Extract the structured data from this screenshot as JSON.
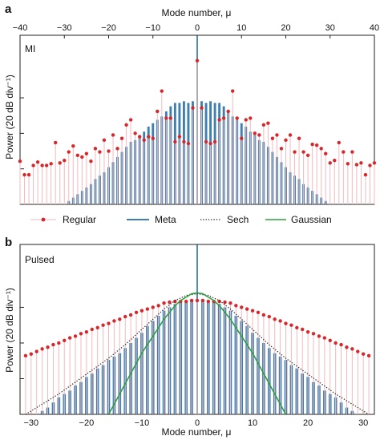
{
  "colors": {
    "regular": "#d9262b",
    "regular_stem": "#f4b9bd",
    "meta": "#3f7fb0",
    "sech": "#222222",
    "gaussian": "#2f9e3f"
  },
  "chart_data": [
    {
      "panel": "a",
      "type": "bar",
      "label": "MI",
      "xlabel": "Mode number, μ",
      "xlabel_position": "top",
      "ylabel": "Power (20 dB div⁻¹)",
      "xlim": [
        -40,
        40
      ],
      "xticks": [
        -40,
        -30,
        -20,
        -10,
        0,
        10,
        20,
        30,
        40
      ],
      "ylim": [
        0,
        1
      ],
      "yticks": [
        0.21,
        0.42,
        0.63
      ],
      "series": [
        {
          "name": "Regular",
          "style": "stem-dot",
          "x": [
            -40,
            -39,
            -38,
            -37,
            -36,
            -35,
            -34,
            -33,
            -32,
            -31,
            -30,
            -29,
            -28,
            -27,
            -26,
            -25,
            -24,
            -23,
            -22,
            -21,
            -20,
            -19,
            -18,
            -17,
            -16,
            -15,
            -14,
            -13,
            -12,
            -11,
            -10,
            -9,
            -8,
            -7,
            -6,
            -5,
            -4,
            -3,
            -2,
            -1,
            0,
            1,
            2,
            3,
            4,
            5,
            6,
            7,
            8,
            9,
            10,
            11,
            12,
            13,
            14,
            15,
            16,
            17,
            18,
            19,
            20,
            21,
            22,
            23,
            24,
            25,
            26,
            27,
            28,
            29,
            30,
            31,
            32,
            33,
            34,
            35,
            36,
            37,
            38,
            39,
            40
          ],
          "y": [
            0.255,
            0.175,
            0.175,
            0.23,
            0.25,
            0.23,
            0.23,
            0.24,
            0.365,
            0.245,
            0.26,
            0.31,
            0.345,
            0.29,
            0.28,
            0.3,
            0.255,
            0.33,
            0.31,
            0.38,
            0.315,
            0.41,
            0.33,
            0.39,
            0.47,
            0.5,
            0.42,
            0.4,
            0.38,
            0.4,
            0.39,
            0.55,
            0.67,
            0.51,
            0.51,
            0.37,
            0.4,
            0.37,
            0.36,
            0.57,
            0.85,
            0.57,
            0.37,
            0.36,
            0.37,
            0.5,
            0.51,
            0.55,
            0.67,
            0.51,
            0.39,
            0.5,
            0.51,
            0.42,
            0.41,
            0.47,
            0.48,
            0.39,
            0.41,
            0.33,
            0.38,
            0.41,
            0.31,
            0.39,
            0.31,
            0.29,
            0.355,
            0.35,
            0.33,
            0.3,
            0.245,
            0.26,
            0.365,
            0.31,
            0.24,
            0.31,
            0.235,
            0.245,
            0.175,
            0.23,
            0.245
          ]
        },
        {
          "name": "Meta",
          "style": "bar",
          "x": [
            -40,
            -39,
            -38,
            -37,
            -36,
            -35,
            -34,
            -33,
            -32,
            -31,
            -30,
            -29,
            -28,
            -27,
            -26,
            -25,
            -24,
            -23,
            -22,
            -21,
            -20,
            -19,
            -18,
            -17,
            -16,
            -15,
            -14,
            -13,
            -12,
            -11,
            -10,
            -9,
            -8,
            -7,
            -6,
            -5,
            -4,
            -3,
            -2,
            -1,
            0,
            1,
            2,
            3,
            4,
            5,
            6,
            7,
            8,
            9,
            10,
            11,
            12,
            13,
            14,
            15,
            16,
            17,
            18,
            19,
            20,
            21,
            22,
            23,
            24,
            25,
            26,
            27,
            28,
            29,
            30,
            31,
            32,
            33,
            34,
            35,
            36,
            37,
            38,
            39,
            40
          ],
          "y": [
            0,
            0,
            0,
            0,
            0,
            0,
            0,
            0,
            0,
            0,
            0,
            0.02,
            0.04,
            0.06,
            0.08,
            0.1,
            0.12,
            0.15,
            0.17,
            0.19,
            0.22,
            0.25,
            0.28,
            0.31,
            0.34,
            0.37,
            0.38,
            0.41,
            0.43,
            0.46,
            0.48,
            0.5,
            0.52,
            0.55,
            0.58,
            0.6,
            0.6,
            0.61,
            0.6,
            0.61,
            1.0,
            0.61,
            0.6,
            0.61,
            0.6,
            0.6,
            0.58,
            0.55,
            0.52,
            0.5,
            0.48,
            0.46,
            0.43,
            0.41,
            0.38,
            0.37,
            0.34,
            0.31,
            0.28,
            0.25,
            0.22,
            0.19,
            0.17,
            0.15,
            0.12,
            0.1,
            0.08,
            0.06,
            0.04,
            0.02,
            0,
            0,
            0,
            0,
            0,
            0,
            0,
            0,
            0,
            0,
            0
          ]
        }
      ]
    },
    {
      "panel": "b",
      "type": "bar",
      "label": "Pulsed",
      "xlabel": "Mode number, μ",
      "ylabel": "Power (20 dB div⁻¹)",
      "xlim": [
        -32,
        32
      ],
      "xticks": [
        -30,
        -20,
        -10,
        0,
        10,
        20,
        30
      ],
      "ylim": [
        0,
        1
      ],
      "yticks": [
        0.21,
        0.42,
        0.63
      ],
      "series": [
        {
          "name": "Regular",
          "style": "stem-dot",
          "x": [
            -31,
            -30,
            -29,
            -28,
            -27,
            -26,
            -25,
            -24,
            -23,
            -22,
            -21,
            -20,
            -19,
            -18,
            -17,
            -16,
            -15,
            -14,
            -13,
            -12,
            -11,
            -10,
            -9,
            -8,
            -7,
            -6,
            -5,
            -4,
            -3,
            -2,
            -1,
            0,
            1,
            2,
            3,
            4,
            5,
            6,
            7,
            8,
            9,
            10,
            11,
            12,
            13,
            14,
            15,
            16,
            17,
            18,
            19,
            20,
            21,
            22,
            23,
            24,
            25,
            26,
            27,
            28,
            29,
            30,
            31
          ],
          "y": [
            0.345,
            0.355,
            0.37,
            0.385,
            0.395,
            0.41,
            0.42,
            0.435,
            0.45,
            0.46,
            0.475,
            0.485,
            0.5,
            0.51,
            0.525,
            0.535,
            0.55,
            0.56,
            0.575,
            0.585,
            0.6,
            0.61,
            0.62,
            0.63,
            0.64,
            0.655,
            0.66,
            0.665,
            0.665,
            0.665,
            0.67,
            0.67,
            0.67,
            0.665,
            0.665,
            0.665,
            0.66,
            0.655,
            0.64,
            0.63,
            0.62,
            0.61,
            0.6,
            0.585,
            0.575,
            0.56,
            0.55,
            0.535,
            0.525,
            0.51,
            0.5,
            0.485,
            0.475,
            0.46,
            0.45,
            0.435,
            0.42,
            0.41,
            0.395,
            0.385,
            0.37,
            0.355,
            0.345
          ]
        },
        {
          "name": "Meta",
          "style": "bar",
          "x": [
            -31,
            -30,
            -29,
            -28,
            -27,
            -26,
            -25,
            -24,
            -23,
            -22,
            -21,
            -20,
            -19,
            -18,
            -17,
            -16,
            -15,
            -14,
            -13,
            -12,
            -11,
            -10,
            -9,
            -8,
            -7,
            -6,
            -5,
            -4,
            -3,
            -2,
            -1,
            0,
            1,
            2,
            3,
            4,
            5,
            6,
            7,
            8,
            9,
            10,
            11,
            12,
            13,
            14,
            15,
            16,
            17,
            18,
            19,
            20,
            21,
            22,
            23,
            24,
            25,
            26,
            27,
            28,
            29,
            30,
            31
          ],
          "y": [
            0,
            0,
            0,
            0.02,
            0.04,
            0.07,
            0.1,
            0.12,
            0.14,
            0.17,
            0.19,
            0.22,
            0.24,
            0.27,
            0.29,
            0.32,
            0.34,
            0.36,
            0.39,
            0.42,
            0.45,
            0.48,
            0.52,
            0.55,
            0.58,
            0.61,
            0.63,
            0.65,
            0.66,
            0.66,
            0.67,
            1.0,
            0.67,
            0.66,
            0.66,
            0.65,
            0.63,
            0.61,
            0.58,
            0.55,
            0.52,
            0.48,
            0.45,
            0.42,
            0.39,
            0.36,
            0.34,
            0.32,
            0.29,
            0.27,
            0.24,
            0.22,
            0.19,
            0.17,
            0.14,
            0.12,
            0.1,
            0.07,
            0.04,
            0.02,
            0,
            0,
            0
          ]
        },
        {
          "name": "Sech",
          "style": "dotted-line",
          "x": [
            -31,
            -28,
            -25,
            -22,
            -19,
            -16,
            -13,
            -10,
            -8,
            -6,
            -4,
            -2,
            0,
            2,
            4,
            6,
            8,
            10,
            13,
            16,
            19,
            22,
            25,
            28,
            31
          ],
          "y": [
            0.0,
            0.06,
            0.12,
            0.19,
            0.26,
            0.33,
            0.41,
            0.5,
            0.56,
            0.62,
            0.67,
            0.7,
            0.71,
            0.7,
            0.67,
            0.62,
            0.56,
            0.5,
            0.41,
            0.33,
            0.26,
            0.19,
            0.12,
            0.06,
            0.0
          ]
        },
        {
          "name": "Gaussian",
          "style": "line",
          "x": [
            -16,
            -15,
            -14,
            -13,
            -12,
            -11,
            -10,
            -9,
            -8,
            -7,
            -6,
            -5,
            -4,
            -3,
            -2,
            -1,
            0,
            1,
            2,
            3,
            4,
            5,
            6,
            7,
            8,
            9,
            10,
            11,
            12,
            13,
            14,
            15,
            16
          ],
          "y": [
            0.0,
            0.06,
            0.12,
            0.18,
            0.24,
            0.3,
            0.36,
            0.41,
            0.46,
            0.51,
            0.56,
            0.6,
            0.64,
            0.67,
            0.69,
            0.71,
            0.715,
            0.71,
            0.69,
            0.67,
            0.64,
            0.6,
            0.56,
            0.51,
            0.46,
            0.41,
            0.36,
            0.3,
            0.24,
            0.18,
            0.12,
            0.06,
            0.0
          ]
        }
      ]
    }
  ],
  "legend": {
    "placement": "between-panels",
    "entries": [
      {
        "key": "regular",
        "label": "Regular"
      },
      {
        "key": "meta",
        "label": "Meta"
      },
      {
        "key": "sech",
        "label": "Sech"
      },
      {
        "key": "gaussian",
        "label": "Gaussian"
      }
    ]
  }
}
